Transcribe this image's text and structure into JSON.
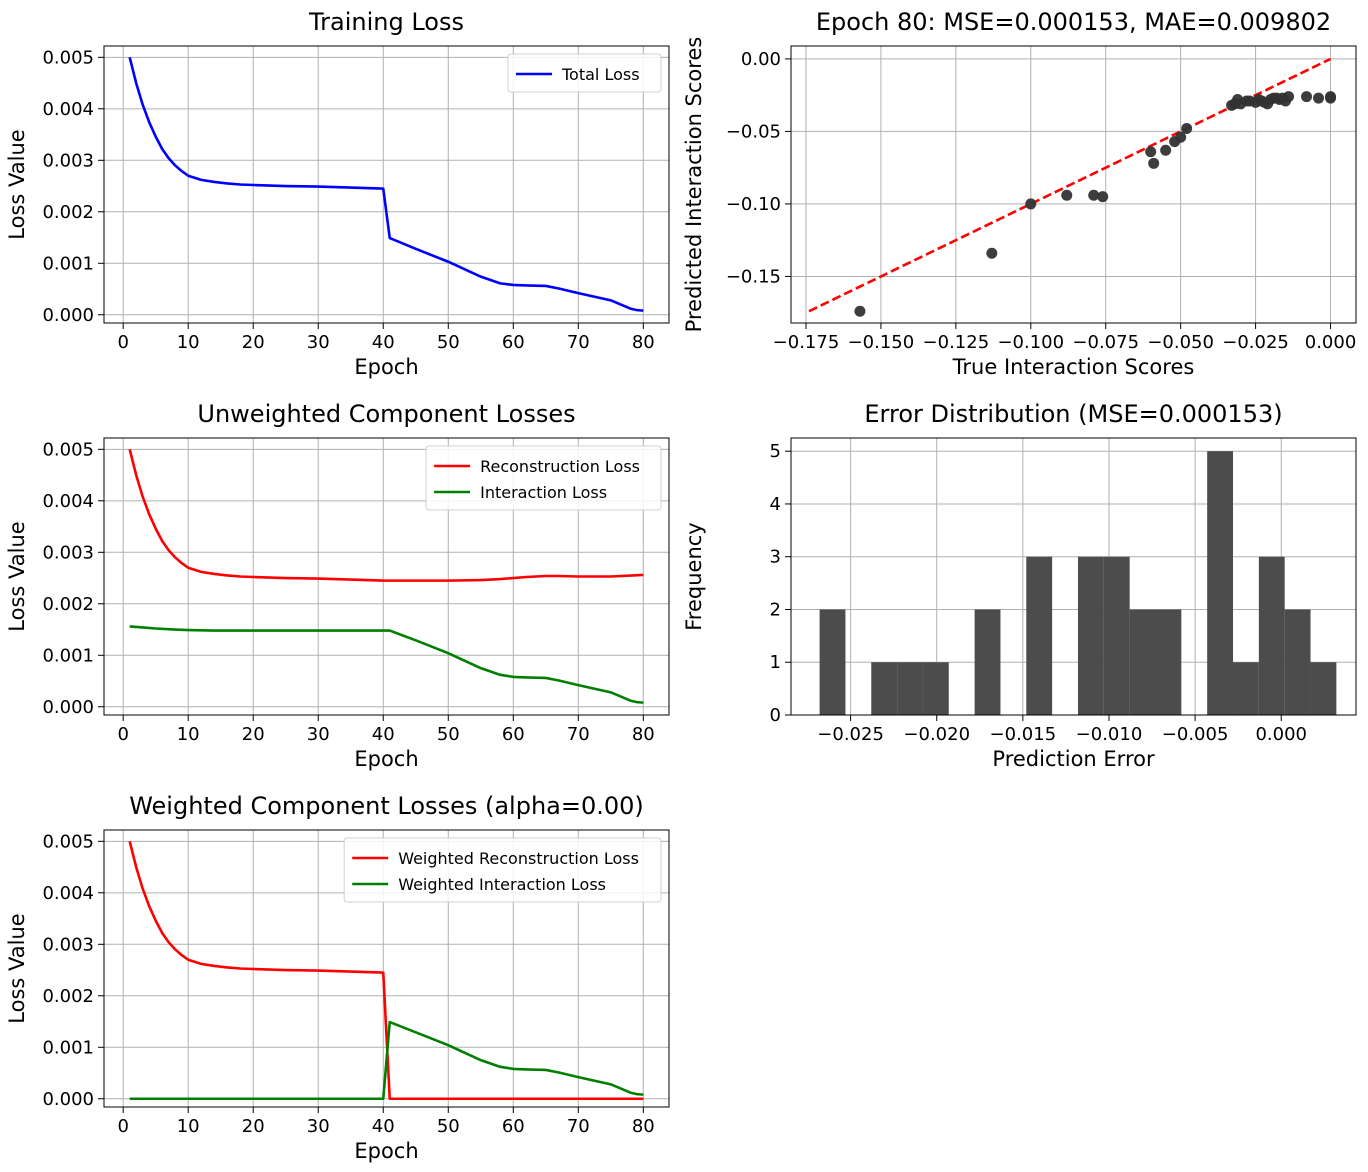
{
  "chart_data": [
    {
      "type": "line",
      "title": "Training Loss",
      "xlabel": "Epoch",
      "ylabel": "Loss Value",
      "xlim": [
        -2.95,
        83.95
      ],
      "ylim": [
        -0.00016,
        0.00522
      ],
      "xticks": [
        0,
        10,
        20,
        30,
        40,
        50,
        60,
        70,
        80
      ],
      "xtick_labels": [
        "0",
        "10",
        "20",
        "30",
        "40",
        "50",
        "60",
        "70",
        "80"
      ],
      "yticks": [
        0,
        0.001,
        0.002,
        0.003,
        0.004,
        0.005
      ],
      "ytick_labels": [
        "0.000",
        "0.001",
        "0.002",
        "0.003",
        "0.004",
        "0.005"
      ],
      "grid": true,
      "legend": "top-right",
      "series": [
        {
          "name": "Total Loss",
          "color": "#0000ff",
          "x": [
            1,
            2,
            3,
            4,
            5,
            6,
            7,
            8,
            9,
            10,
            12,
            14,
            16,
            18,
            20,
            25,
            30,
            35,
            40,
            41,
            45,
            50,
            55,
            58,
            60,
            62,
            65,
            67,
            70,
            75,
            78,
            79,
            80
          ],
          "y": [
            0.005,
            0.0045,
            0.00408,
            0.00374,
            0.00346,
            0.00322,
            0.00304,
            0.0029,
            0.00279,
            0.0027,
            0.00262,
            0.00258,
            0.00255,
            0.00253,
            0.00252,
            0.0025,
            0.00249,
            0.00247,
            0.00245,
            0.00149,
            0.00128,
            0.00103,
            0.00074,
            0.00061,
            0.00058,
            0.00057,
            0.00056,
            0.00051,
            0.00042,
            0.00028,
            0.00012,
            9e-05,
            8e-05
          ]
        }
      ]
    },
    {
      "type": "scatter",
      "title": "Epoch 80: MSE=0.000153, MAE=0.009802",
      "xlabel": "True Interaction Scores",
      "ylabel": "Predicted Interaction Scores",
      "xlim": [
        -0.18,
        0.0085
      ],
      "ylim": [
        -0.1821,
        0.0089
      ],
      "xticks": [
        -0.175,
        -0.15,
        -0.125,
        -0.1,
        -0.075,
        -0.05,
        -0.025,
        0
      ],
      "xtick_labels": [
        "−0.175",
        "−0.150",
        "−0.125",
        "−0.100",
        "−0.075",
        "−0.050",
        "−0.025",
        "0.000"
      ],
      "yticks": [
        -0.15,
        -0.1,
        -0.05,
        0
      ],
      "ytick_labels": [
        "−0.15",
        "−0.10",
        "−0.05",
        "0.00"
      ],
      "grid": true,
      "points": {
        "color": "#333333",
        "x": [
          -0.157,
          -0.113,
          -0.1,
          -0.088,
          -0.079,
          -0.076,
          -0.06,
          -0.059,
          -0.055,
          -0.052,
          -0.05,
          -0.048,
          -0.033,
          -0.032,
          -0.031,
          -0.03,
          -0.028,
          -0.027,
          -0.025,
          -0.024,
          -0.023,
          -0.022,
          -0.021,
          -0.02,
          -0.019,
          -0.018,
          -0.017,
          -0.016,
          -0.015,
          -0.014,
          -0.008,
          -0.004,
          0,
          0
        ],
        "y": [
          -0.174,
          -0.134,
          -0.1,
          -0.094,
          -0.094,
          -0.095,
          -0.064,
          -0.072,
          -0.063,
          -0.057,
          -0.054,
          -0.048,
          -0.032,
          -0.031,
          -0.028,
          -0.031,
          -0.029,
          -0.029,
          -0.03,
          -0.028,
          -0.029,
          -0.03,
          -0.031,
          -0.028,
          -0.027,
          -0.027,
          -0.028,
          -0.027,
          -0.029,
          -0.026,
          -0.026,
          -0.027,
          -0.026,
          -0.027
        ]
      },
      "reference_line": {
        "color": "#ff0000",
        "x": [
          -0.174,
          0
        ],
        "y": [
          -0.174,
          0
        ]
      }
    },
    {
      "type": "line",
      "title": "Unweighted Component Losses",
      "xlabel": "Epoch",
      "ylabel": "Loss Value",
      "xlim": [
        -2.95,
        83.95
      ],
      "ylim": [
        -0.00016,
        0.00522
      ],
      "xticks": [
        0,
        10,
        20,
        30,
        40,
        50,
        60,
        70,
        80
      ],
      "xtick_labels": [
        "0",
        "10",
        "20",
        "30",
        "40",
        "50",
        "60",
        "70",
        "80"
      ],
      "yticks": [
        0,
        0.001,
        0.002,
        0.003,
        0.004,
        0.005
      ],
      "ytick_labels": [
        "0.000",
        "0.001",
        "0.002",
        "0.003",
        "0.004",
        "0.005"
      ],
      "grid": true,
      "legend": "top-right",
      "series": [
        {
          "name": "Reconstruction Loss",
          "color": "#ff0000",
          "x": [
            1,
            2,
            3,
            4,
            5,
            6,
            7,
            8,
            9,
            10,
            12,
            14,
            16,
            18,
            20,
            25,
            30,
            35,
            40,
            45,
            50,
            55,
            58,
            60,
            62,
            65,
            67,
            70,
            75,
            80
          ],
          "y": [
            0.005,
            0.0045,
            0.00408,
            0.00374,
            0.00346,
            0.00322,
            0.00304,
            0.0029,
            0.00279,
            0.0027,
            0.00262,
            0.00258,
            0.00255,
            0.00253,
            0.00252,
            0.0025,
            0.00249,
            0.00247,
            0.00245,
            0.00245,
            0.00245,
            0.00246,
            0.00248,
            0.0025,
            0.00252,
            0.00254,
            0.00254,
            0.00253,
            0.00253,
            0.00256
          ]
        },
        {
          "name": "Interaction Loss",
          "color": "#008000",
          "x": [
            1,
            3,
            5,
            8,
            10,
            14,
            20,
            30,
            40,
            41,
            45,
            50,
            55,
            58,
            60,
            62,
            65,
            67,
            70,
            75,
            78,
            79,
            80
          ],
          "y": [
            0.00156,
            0.00154,
            0.00152,
            0.0015,
            0.00149,
            0.00148,
            0.00148,
            0.00148,
            0.00148,
            0.00148,
            0.00129,
            0.00104,
            0.00075,
            0.00062,
            0.00058,
            0.00057,
            0.00056,
            0.00051,
            0.00042,
            0.00028,
            0.00012,
            9e-05,
            8e-05
          ]
        }
      ]
    },
    {
      "type": "bar",
      "title": "Error Distribution (MSE=0.000153)",
      "xlabel": "Prediction Error",
      "ylabel": "Frequency",
      "xlim": [
        -0.02846,
        0.00434
      ],
      "ylim": [
        0,
        5.25
      ],
      "xticks": [
        -0.025,
        -0.02,
        -0.015,
        -0.01,
        -0.005,
        0
      ],
      "xtick_labels": [
        "−0.025",
        "−0.020",
        "−0.015",
        "−0.010",
        "−0.005",
        "0.000"
      ],
      "yticks": [
        0,
        1,
        2,
        3,
        4,
        5
      ],
      "ytick_labels": [
        "0",
        "1",
        "2",
        "3",
        "4",
        "5"
      ],
      "grid": true,
      "bar_color": "#4c4c4c",
      "bin_width": 0.0015,
      "bin_starts": [
        -0.0268,
        -0.0253,
        -0.0238,
        -0.0223,
        -0.0208,
        -0.0193,
        -0.0178,
        -0.0163,
        -0.0148,
        -0.0133,
        -0.0118,
        -0.0103,
        -0.0088,
        -0.0073,
        -0.0058,
        -0.0043,
        -0.0028,
        -0.0013,
        0.0002,
        0.0017
      ],
      "values": [
        2,
        0,
        1,
        1,
        1,
        0,
        2,
        0,
        3,
        0,
        3,
        3,
        2,
        2,
        0,
        5,
        1,
        3,
        2,
        1
      ]
    },
    {
      "type": "line",
      "title": "Weighted Component Losses (alpha=0.00)",
      "xlabel": "Epoch",
      "ylabel": "Loss Value",
      "xlim": [
        -2.95,
        83.95
      ],
      "ylim": [
        -0.00016,
        0.00522
      ],
      "xticks": [
        0,
        10,
        20,
        30,
        40,
        50,
        60,
        70,
        80
      ],
      "xtick_labels": [
        "0",
        "10",
        "20",
        "30",
        "40",
        "50",
        "60",
        "70",
        "80"
      ],
      "yticks": [
        0,
        0.001,
        0.002,
        0.003,
        0.004,
        0.005
      ],
      "ytick_labels": [
        "0.000",
        "0.001",
        "0.002",
        "0.003",
        "0.004",
        "0.005"
      ],
      "grid": true,
      "legend": "top-right",
      "series": [
        {
          "name": "Weighted Reconstruction Loss",
          "color": "#ff0000",
          "x": [
            1,
            2,
            3,
            4,
            5,
            6,
            7,
            8,
            9,
            10,
            12,
            14,
            16,
            18,
            20,
            25,
            30,
            35,
            40,
            41,
            50,
            60,
            70,
            80
          ],
          "y": [
            0.005,
            0.0045,
            0.00408,
            0.00374,
            0.00346,
            0.00322,
            0.00304,
            0.0029,
            0.00279,
            0.0027,
            0.00262,
            0.00258,
            0.00255,
            0.00253,
            0.00252,
            0.0025,
            0.00249,
            0.00247,
            0.00245,
            0,
            0,
            0,
            0,
            0
          ]
        },
        {
          "name": "Weighted Interaction Loss",
          "color": "#008000",
          "x": [
            1,
            10,
            20,
            30,
            40,
            41,
            45,
            50,
            55,
            58,
            60,
            62,
            65,
            67,
            70,
            75,
            78,
            79,
            80
          ],
          "y": [
            0,
            0,
            0,
            0,
            0,
            0.00149,
            0.00129,
            0.00104,
            0.00075,
            0.00062,
            0.00058,
            0.00057,
            0.00056,
            0.00051,
            0.00042,
            0.00028,
            0.00012,
            9e-05,
            8e-05
          ]
        }
      ]
    }
  ]
}
